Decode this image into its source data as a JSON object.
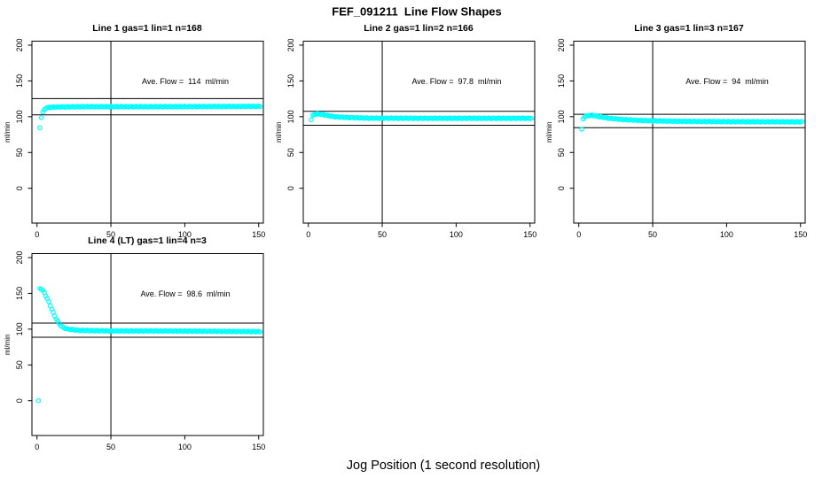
{
  "figure": {
    "title": "FEF_091211  Line Flow Shapes",
    "xlabel": "Jog Position (1 second resolution)",
    "background": "#ffffff",
    "axis_color": "#000000"
  },
  "chart_data": {
    "type": "scatter",
    "title": "FEF_091211  Line Flow Shapes",
    "xlabel": "Jog Position (1 second resolution)",
    "ylabel": "ml/min",
    "marker": "open-circle",
    "series_color": "#00ffff",
    "xlim": [
      -4,
      154
    ],
    "ylim": [
      -48,
      206
    ],
    "x_ticks": [
      0,
      50,
      100,
      150
    ],
    "y_ticks": [
      0,
      50,
      100,
      150,
      200
    ],
    "grid": false,
    "layout": "2x3 panel grid, 4 panels used",
    "plots": [
      {
        "title": "Line 1 gas=1 lin=1 n=168",
        "annotation": "Ave. Flow =  114  ml/min",
        "ave_flow": 114,
        "n": 168,
        "ref_line_upper": 125.4,
        "ref_line_lower": 102.6,
        "vline_x": 50,
        "anchors": [
          [
            2,
            85
          ],
          [
            3,
            99
          ],
          [
            4,
            106
          ],
          [
            5,
            110
          ],
          [
            6,
            112
          ],
          [
            8,
            113
          ],
          [
            12,
            113.5
          ],
          [
            30,
            114
          ],
          [
            80,
            114
          ],
          [
            151,
            114.5
          ]
        ],
        "extra_points": []
      },
      {
        "title": "Line 2 gas=1 lin=2 n=166",
        "annotation": "Ave. Flow =  97.8  ml/min",
        "ave_flow": 97.8,
        "n": 166,
        "ref_line_upper": 107.6,
        "ref_line_lower": 88.0,
        "vline_x": 50,
        "anchors": [
          [
            2,
            96
          ],
          [
            3,
            101.5
          ],
          [
            4,
            103
          ],
          [
            6,
            104
          ],
          [
            9,
            103.5
          ],
          [
            13,
            101.5
          ],
          [
            18,
            100
          ],
          [
            25,
            99
          ],
          [
            40,
            98
          ],
          [
            80,
            97.8
          ],
          [
            151,
            97.8
          ]
        ],
        "extra_points": []
      },
      {
        "title": "Line 3 gas=1 lin=3 n=167",
        "annotation": "Ave. Flow =  94  ml/min",
        "ave_flow": 94,
        "n": 167,
        "ref_line_upper": 103.4,
        "ref_line_lower": 84.6,
        "vline_x": 50,
        "anchors": [
          [
            2,
            82
          ],
          [
            3,
            97
          ],
          [
            4,
            100
          ],
          [
            6,
            101.5
          ],
          [
            9,
            102
          ],
          [
            13,
            100.5
          ],
          [
            20,
            98
          ],
          [
            30,
            96
          ],
          [
            45,
            94.5
          ],
          [
            70,
            93.5
          ],
          [
            110,
            93
          ],
          [
            151,
            92.8
          ]
        ],
        "extra_points": []
      },
      {
        "title": "Line 4 (LT) gas=1 lin=4 n=3",
        "annotation": "Ave. Flow =  98.6  ml/min",
        "ave_flow": 98.6,
        "n": 3,
        "ref_line_upper": 108.5,
        "ref_line_lower": 88.7,
        "vline_x": 50,
        "anchors": [
          [
            2,
            157
          ],
          [
            3,
            156
          ],
          [
            4,
            154
          ],
          [
            5,
            151
          ],
          [
            6,
            147
          ],
          [
            7,
            142.5
          ],
          [
            8,
            138
          ],
          [
            9,
            133
          ],
          [
            10,
            128
          ],
          [
            11,
            123
          ],
          [
            12,
            118.5
          ],
          [
            13,
            114.5
          ],
          [
            14,
            111
          ],
          [
            15,
            108
          ],
          [
            16,
            105.5
          ],
          [
            17,
            103.5
          ],
          [
            18,
            102
          ],
          [
            20,
            100.5
          ],
          [
            23,
            99.5
          ],
          [
            27,
            98.5
          ],
          [
            35,
            98
          ],
          [
            50,
            97.5
          ],
          [
            80,
            97.5
          ],
          [
            120,
            97
          ],
          [
            151,
            96.5
          ]
        ],
        "extra_points": [
          [
            1,
            0
          ]
        ]
      }
    ]
  }
}
